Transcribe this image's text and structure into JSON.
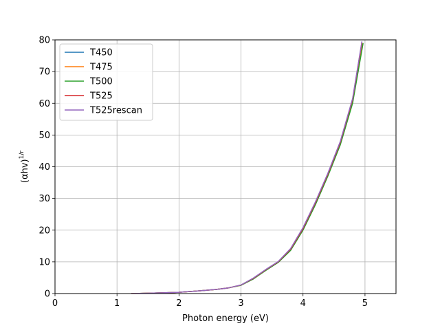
{
  "chart_data": {
    "type": "line",
    "title": "",
    "xlabel": "Photon energy (eV)",
    "ylabel": "(αhv)",
    "ylabel_superscript": "1/r",
    "xlim": [
      0,
      5.5
    ],
    "ylim": [
      0,
      80
    ],
    "xticks": [
      0,
      1,
      2,
      3,
      4,
      5
    ],
    "yticks": [
      0,
      10,
      20,
      30,
      40,
      50,
      60,
      70,
      80
    ],
    "grid": true,
    "legend_position": "top-left",
    "series": [
      {
        "name": "T450",
        "color": "#1f77b4",
        "x": [
          1.23,
          1.5,
          2.0,
          2.3,
          2.6,
          2.8,
          3.0,
          3.2,
          3.4,
          3.6,
          3.8,
          4.0,
          4.2,
          4.4,
          4.6,
          4.8,
          4.95
        ],
        "y": [
          0.0,
          0.1,
          0.4,
          0.8,
          1.3,
          1.8,
          2.7,
          4.8,
          7.5,
          10.0,
          14.0,
          20.5,
          28.5,
          37.5,
          47.5,
          61.0,
          79.0
        ]
      },
      {
        "name": "T475",
        "color": "#ff7f0e",
        "x": [
          1.23,
          1.5,
          2.0,
          2.3,
          2.6,
          2.8,
          3.0,
          3.2,
          3.4,
          3.6,
          3.8,
          4.0,
          4.2,
          4.4,
          4.6,
          4.8,
          4.96
        ],
        "y": [
          0.0,
          0.1,
          0.4,
          0.8,
          1.3,
          1.8,
          2.6,
          4.7,
          7.4,
          9.9,
          13.8,
          20.2,
          28.2,
          37.2,
          47.0,
          60.5,
          79.0
        ]
      },
      {
        "name": "T500",
        "color": "#2ca02c",
        "x": [
          1.23,
          1.5,
          2.0,
          2.3,
          2.6,
          2.8,
          3.0,
          3.2,
          3.4,
          3.6,
          3.8,
          4.0,
          4.2,
          4.4,
          4.6,
          4.8,
          4.97
        ],
        "y": [
          0.0,
          0.1,
          0.4,
          0.8,
          1.3,
          1.8,
          2.6,
          4.6,
          7.3,
          9.8,
          13.6,
          20.0,
          28.0,
          37.0,
          46.8,
          60.0,
          79.0
        ]
      },
      {
        "name": "T525",
        "color": "#d62728",
        "x": [
          1.23,
          1.5,
          2.0,
          2.3,
          2.6,
          2.8,
          3.0,
          3.2,
          3.4,
          3.6,
          3.8,
          4.0,
          4.2,
          4.4,
          4.6,
          4.8,
          4.95
        ],
        "y": [
          0.0,
          0.1,
          0.4,
          0.8,
          1.3,
          1.8,
          2.7,
          4.8,
          7.5,
          10.0,
          14.0,
          20.5,
          28.6,
          37.6,
          47.6,
          61.2,
          79.2
        ]
      },
      {
        "name": "T525rescan",
        "color": "#9467bd",
        "x": [
          1.23,
          1.5,
          2.0,
          2.3,
          2.6,
          2.8,
          3.0,
          3.2,
          3.4,
          3.6,
          3.8,
          4.0,
          4.2,
          4.4,
          4.6,
          4.8,
          4.95
        ],
        "y": [
          0.0,
          0.1,
          0.4,
          0.8,
          1.3,
          1.8,
          2.7,
          4.9,
          7.6,
          10.1,
          14.2,
          20.8,
          28.9,
          37.9,
          47.9,
          61.5,
          79.5
        ]
      }
    ]
  }
}
